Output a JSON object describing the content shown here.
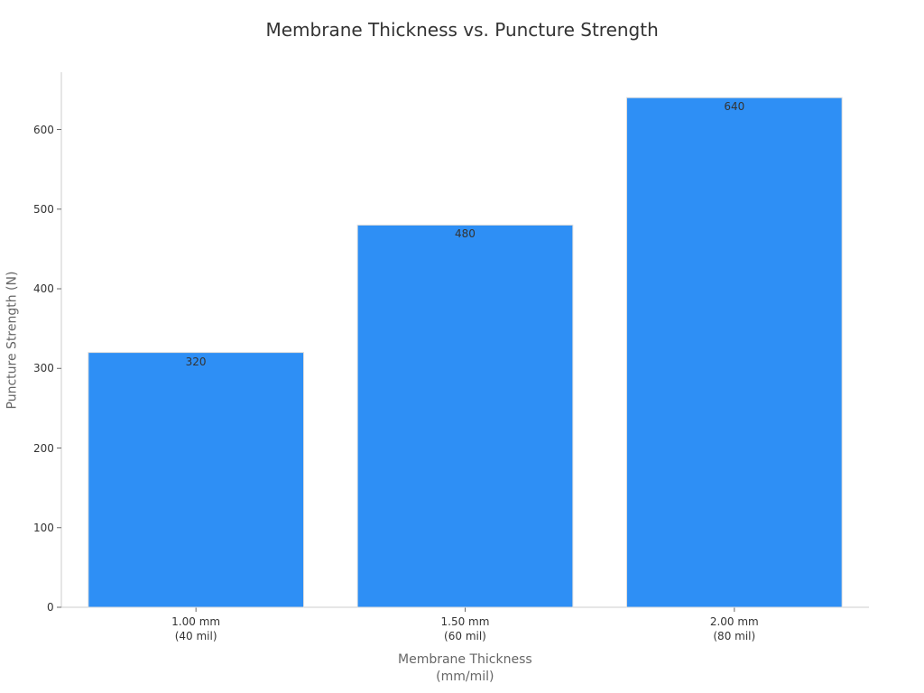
{
  "chart_data": {
    "type": "bar",
    "title": "Membrane Thickness vs. Puncture Strength",
    "x_label": "Membrane Thickness\n(mm/mil)",
    "y_label": "Puncture Strength (N)",
    "categories": [
      "1.00 mm\n(40 mil)",
      "1.50 mm\n(60 mil)",
      "2.00 mm\n(80 mil)"
    ],
    "values": [
      320,
      480,
      640
    ],
    "color": "#2e8ff5",
    "ylim": [
      0,
      672
    ],
    "yticks": [
      0,
      100,
      200,
      300,
      400,
      500,
      600
    ],
    "grid": false
  }
}
